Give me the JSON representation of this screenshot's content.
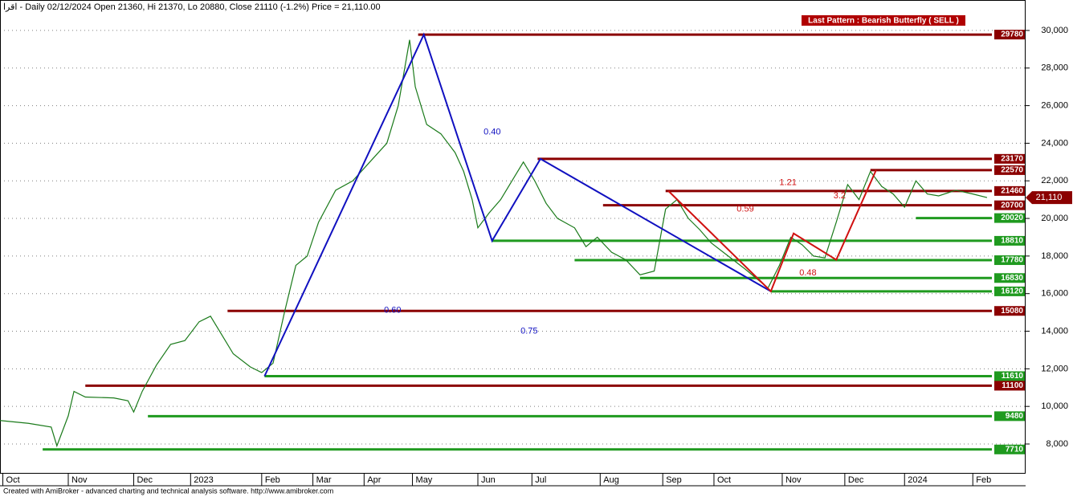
{
  "chart_data": {
    "type": "line",
    "title": "اقرا - Daily 02/12/2024 Open 21360, Hi 21370, Lo 20880, Close 21110 (-1.2%) Price = 21,110.00",
    "footer": "Created with AmiBroker - advanced charting and technical analysis software. http://www.amibroker.com",
    "pattern_label": "Last Pattern : Bearish Butterfly ( SELL )",
    "last_price_label": "21,110",
    "xlim": [
      0,
      360
    ],
    "xticks": [
      {
        "value": 1,
        "label": "Oct"
      },
      {
        "value": 24,
        "label": "Nov"
      },
      {
        "value": 47,
        "label": "Dec"
      },
      {
        "value": 67,
        "label": "2023"
      },
      {
        "value": 92,
        "label": "Feb"
      },
      {
        "value": 110,
        "label": "Mar"
      },
      {
        "value": 128,
        "label": "Apr"
      },
      {
        "value": 145,
        "label": "May"
      },
      {
        "value": 168,
        "label": "Jun"
      },
      {
        "value": 187,
        "label": "Jul"
      },
      {
        "value": 211,
        "label": "Aug"
      },
      {
        "value": 233,
        "label": "Sep"
      },
      {
        "value": 251,
        "label": "Oct"
      },
      {
        "value": 275,
        "label": "Nov"
      },
      {
        "value": 297,
        "label": "Dec"
      },
      {
        "value": 318,
        "label": "2024"
      },
      {
        "value": 342,
        "label": "Feb"
      }
    ],
    "ylim": [
      6420,
      31620
    ],
    "yticks": [
      {
        "value": 8000,
        "label": "8,000"
      },
      {
        "value": 10000,
        "label": "10,000"
      },
      {
        "value": 12000,
        "label": "12,000"
      },
      {
        "value": 14000,
        "label": "14,000"
      },
      {
        "value": 16000,
        "label": "16,000"
      },
      {
        "value": 18000,
        "label": "18,000"
      },
      {
        "value": 20000,
        "label": "20,000"
      },
      {
        "value": 22000,
        "label": "22,000"
      },
      {
        "value": 24000,
        "label": "24,000"
      },
      {
        "value": 26000,
        "label": "26,000"
      },
      {
        "value": 28000,
        "label": "28,000"
      },
      {
        "value": 30000,
        "label": "30,000"
      }
    ],
    "series": [
      {
        "name": "Close",
        "color": "#1a7a1a",
        "x": [
          0,
          10,
          18,
          20,
          24,
          26,
          30,
          40,
          45,
          47,
          50,
          55,
          60,
          65,
          70,
          74,
          78,
          82,
          88,
          92,
          96,
          100,
          104,
          108,
          112,
          118,
          124,
          130,
          136,
          140,
          144,
          146,
          150,
          155,
          160,
          163,
          166,
          168,
          172,
          176,
          180,
          184,
          188,
          192,
          196,
          202,
          206,
          210,
          215,
          220,
          225,
          230,
          234,
          238,
          242,
          246,
          250,
          256,
          262,
          266,
          270,
          274,
          278,
          282,
          286,
          290,
          294,
          298,
          302,
          306,
          310,
          314,
          318,
          322,
          326,
          330,
          336,
          342,
          347
        ],
        "values": [
          9250,
          9100,
          8900,
          7900,
          9500,
          10800,
          10500,
          10450,
          10300,
          9700,
          10800,
          12200,
          13300,
          13500,
          14500,
          14800,
          13800,
          12800,
          12100,
          11800,
          12300,
          15000,
          17500,
          18000,
          19800,
          21500,
          22000,
          23000,
          24000,
          26000,
          29500,
          27000,
          25000,
          24500,
          23500,
          22500,
          21000,
          19500,
          20300,
          21000,
          22000,
          23000,
          22000,
          20800,
          20000,
          19500,
          18500,
          19000,
          18200,
          17800,
          17000,
          17200,
          20500,
          21000,
          20000,
          19400,
          18700,
          18000,
          17300,
          16800,
          16300,
          17500,
          19000,
          18600,
          18000,
          17900,
          19800,
          21800,
          21000,
          22500,
          21700,
          21300,
          20600,
          22000,
          21300,
          21200,
          21500,
          21300,
          21110
        ]
      }
    ],
    "levels": [
      {
        "value": 29780,
        "start": 147,
        "color": "#8b0000"
      },
      {
        "value": 23170,
        "start": 189,
        "color": "#8b0000"
      },
      {
        "value": 22570,
        "start": 306,
        "color": "#8b0000"
      },
      {
        "value": 21460,
        "start": 234,
        "color": "#8b0000"
      },
      {
        "value": 20700,
        "start": 212,
        "color": "#8b0000"
      },
      {
        "value": 20020,
        "start": 322,
        "color": "#1f9a1f"
      },
      {
        "value": 18810,
        "start": 173,
        "color": "#1f9a1f"
      },
      {
        "value": 17780,
        "start": 202,
        "color": "#1f9a1f"
      },
      {
        "value": 16830,
        "start": 225,
        "color": "#1f9a1f"
      },
      {
        "value": 16120,
        "start": 271,
        "color": "#1f9a1f"
      },
      {
        "value": 15080,
        "start": 80,
        "color": "#8b0000"
      },
      {
        "value": 11610,
        "start": 93,
        "color": "#1f9a1f"
      },
      {
        "value": 11100,
        "start": 30,
        "color": "#8b0000"
      },
      {
        "value": 9480,
        "start": 52,
        "color": "#1f9a1f"
      },
      {
        "value": 7710,
        "start": 15,
        "color": "#1f9a1f"
      }
    ],
    "patterns": [
      {
        "color": "#1010c0",
        "x": [
          93,
          149,
          173,
          190,
          271
        ],
        "values": [
          11610,
          29780,
          18810,
          23170,
          16120
        ]
      },
      {
        "color": "#d01010",
        "x": [
          235,
          271,
          279,
          294,
          308
        ],
        "values": [
          21460,
          16120,
          19200,
          17800,
          22570
        ]
      }
    ],
    "annotations": [
      {
        "text": "0.40",
        "x": 170,
        "y": 24600,
        "color": "#1010c0"
      },
      {
        "text": "0.60",
        "x": 135,
        "y": 15100,
        "color": "#1010c0"
      },
      {
        "text": "0.75",
        "x": 183,
        "y": 14000,
        "color": "#1010c0"
      },
      {
        "text": "1.21",
        "x": 274,
        "y": 21900,
        "color": "#d01010"
      },
      {
        "text": "0.59",
        "x": 259,
        "y": 20500,
        "color": "#d01010"
      },
      {
        "text": "3.2",
        "x": 293,
        "y": 21200,
        "color": "#d01010"
      },
      {
        "text": "0.48",
        "x": 281,
        "y": 17100,
        "color": "#d01010"
      }
    ]
  }
}
